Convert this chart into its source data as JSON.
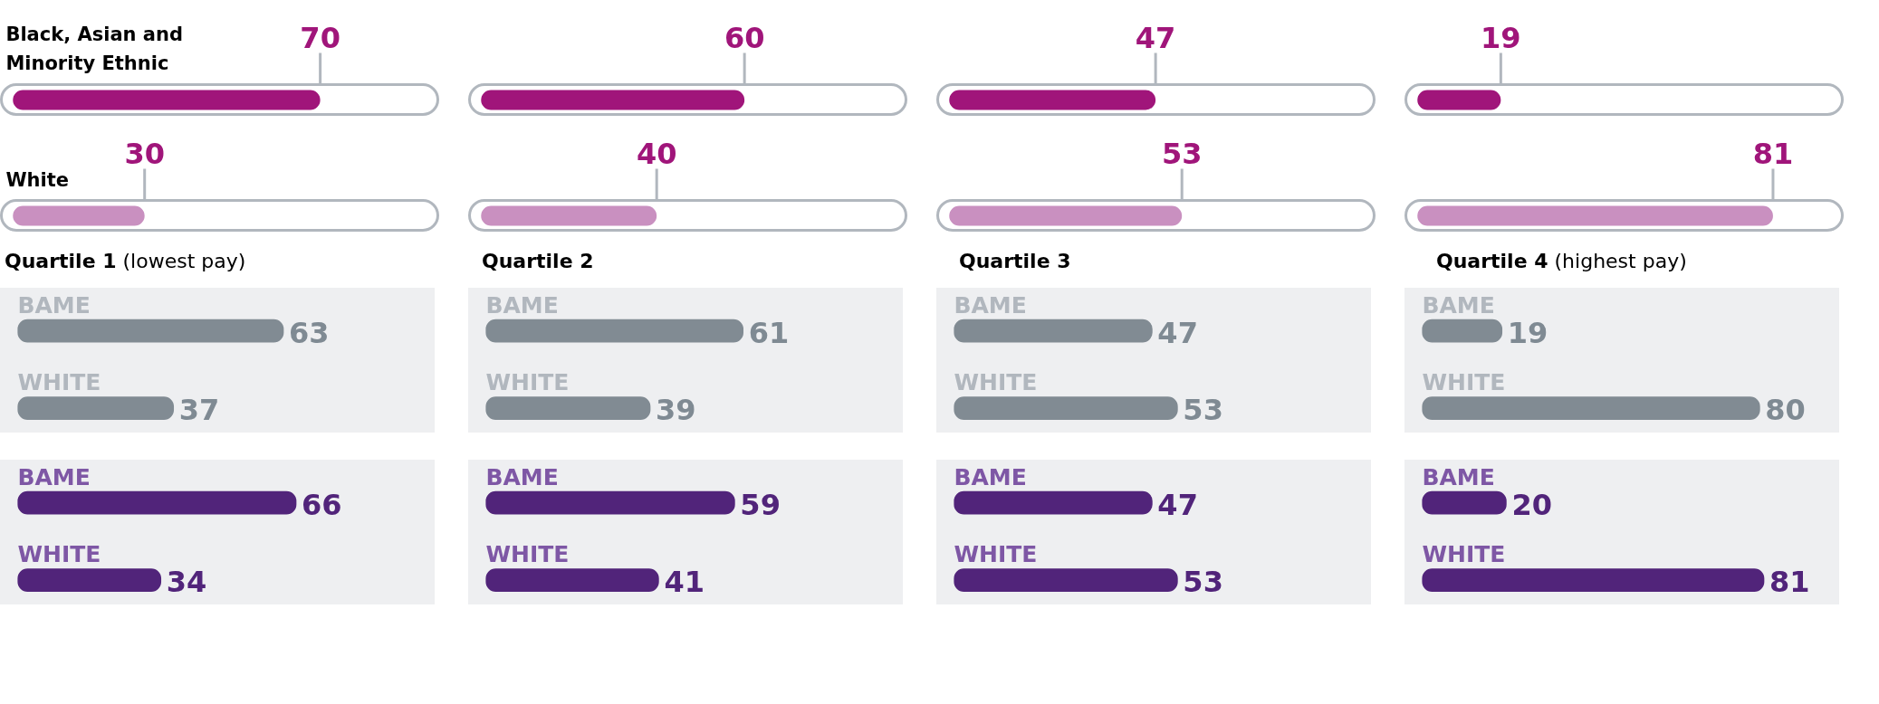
{
  "chart_data": [
    {
      "type": "bar",
      "orientation": "horizontal",
      "categories": [
        "Black, Asian and Minority Ethnic",
        "White"
      ],
      "values": [
        70,
        30
      ],
      "colors": [
        "#a0157a",
        "#c990c0"
      ],
      "data_labels": true
    },
    {
      "type": "bar",
      "orientation": "horizontal",
      "categories": [
        null,
        null
      ],
      "values": [
        60,
        40
      ],
      "colors": [
        "#a0157a",
        "#c990c0"
      ],
      "data_labels": true
    },
    {
      "type": "bar",
      "orientation": "horizontal",
      "categories": [
        null,
        null
      ],
      "values": [
        47,
        53
      ],
      "colors": [
        "#a0157a",
        "#c990c0"
      ],
      "data_labels": true
    },
    {
      "type": "bar",
      "orientation": "horizontal",
      "categories": [
        null,
        null
      ],
      "values": [
        19,
        81
      ],
      "colors": [
        "#a0157a",
        "#c990c0"
      ],
      "data_labels": true
    },
    {
      "type": "bar",
      "orientation": "horizontal",
      "title": "Quartile 1",
      "subtitle": "(lowest pay)",
      "categories": [
        "BAME",
        "WHITE"
      ],
      "values": [
        63,
        37
      ],
      "colors": [
        "#818b93",
        "#818b93"
      ],
      "data_labels": true
    },
    {
      "type": "bar",
      "orientation": "horizontal",
      "title": "Quartile 2",
      "categories": [
        "BAME",
        "WHITE"
      ],
      "values": [
        61,
        39
      ],
      "colors": [
        "#818b93",
        "#818b93"
      ],
      "data_labels": true
    },
    {
      "type": "bar",
      "orientation": "horizontal",
      "title": "Quartile 3",
      "categories": [
        "BAME",
        "WHITE"
      ],
      "values": [
        47,
        53
      ],
      "colors": [
        "#818b93",
        "#818b93"
      ],
      "data_labels": true
    },
    {
      "type": "bar",
      "orientation": "horizontal",
      "title": "Quartile 4",
      "subtitle": "(highest pay)",
      "categories": [
        "BAME",
        "WHITE"
      ],
      "values": [
        19,
        80
      ],
      "colors": [
        "#818b93",
        "#818b93"
      ],
      "data_labels": true
    },
    {
      "type": "bar",
      "orientation": "horizontal",
      "categories": [
        "BAME",
        "WHITE"
      ],
      "values": [
        66,
        34
      ],
      "colors": [
        "#51247a",
        "#51247a"
      ],
      "data_labels": true
    },
    {
      "type": "bar",
      "orientation": "horizontal",
      "categories": [
        "BAME",
        "WHITE"
      ],
      "values": [
        59,
        41
      ],
      "colors": [
        "#51247a",
        "#51247a"
      ],
      "data_labels": true
    },
    {
      "type": "bar",
      "orientation": "horizontal",
      "categories": [
        "BAME",
        "WHITE"
      ],
      "values": [
        47,
        53
      ],
      "colors": [
        "#51247a",
        "#51247a"
      ],
      "data_labels": true
    },
    {
      "type": "bar",
      "orientation": "horizontal",
      "categories": [
        "BAME",
        "WHITE"
      ],
      "values": [
        20,
        81
      ],
      "colors": [
        "#51247a",
        "#51247a"
      ],
      "data_labels": true
    }
  ]
}
